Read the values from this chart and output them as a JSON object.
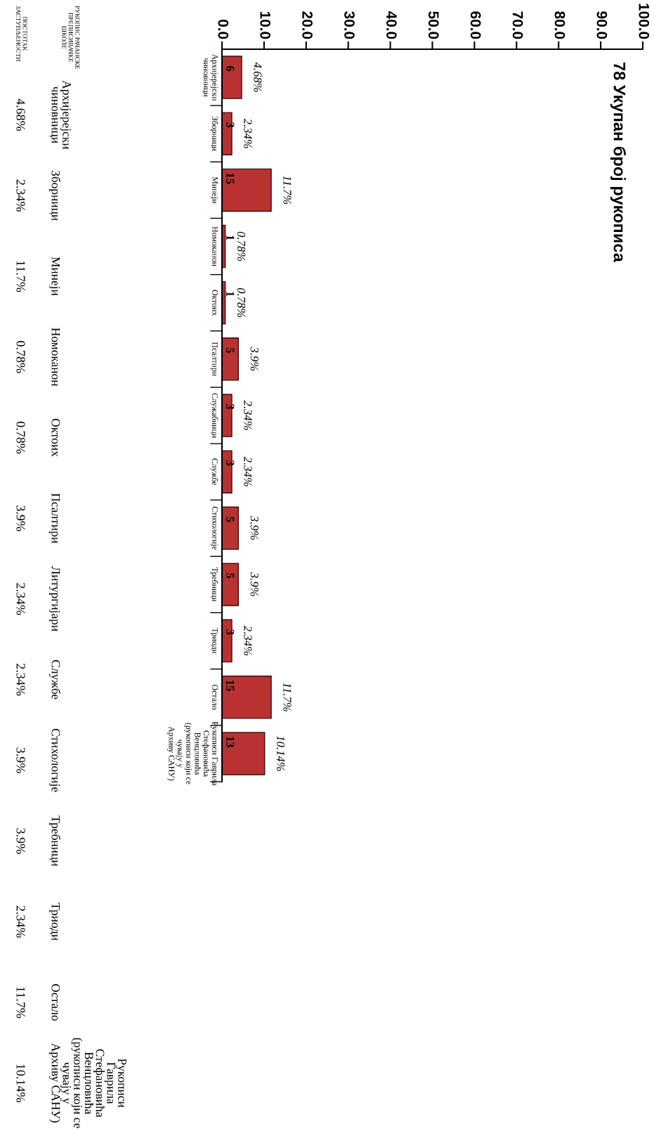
{
  "chart_data": [
    {
      "type": "bar",
      "orientation": "horizontal",
      "title": "78 Укупан број рукописа",
      "categories": [
        "Архијерејски\nчиновници",
        "Зборници",
        "Минеји",
        "Номоканон",
        "Октоих",
        "Псалтири",
        "Служабници",
        "Службе",
        "Стихологије",
        "Требници",
        "Триоди",
        "Остало",
        "Рукописи Гаврила\nСтефановића\nВенцловића\n(рукописи који се\nчувају у\nАрхиву САНУ)"
      ],
      "values": [
        4.68,
        2.34,
        11.7,
        0.78,
        0.78,
        3.9,
        2.34,
        2.34,
        3.9,
        3.9,
        2.34,
        11.7,
        10.14
      ],
      "value_labels": [
        "4.68%",
        "2.34%",
        "11.7%",
        "0.78%",
        "0.78%",
        "3.9%",
        "2.34%",
        "2.34%",
        "3.9%",
        "3.9%",
        "2.34%",
        "11.7%",
        "10.14%"
      ],
      "color": "#b83232",
      "xlim": [
        0,
        100
      ],
      "xticks": [
        {
          "value": 0,
          "label": "0.0"
        },
        {
          "value": 10,
          "label": "10.0"
        },
        {
          "value": 20,
          "label": "20.0"
        },
        {
          "value": 30,
          "label": "30.0"
        },
        {
          "value": 40,
          "label": "40.0"
        },
        {
          "value": 50,
          "label": "50.0"
        },
        {
          "value": 60,
          "label": "60.0"
        },
        {
          "value": 70,
          "label": "70.0"
        },
        {
          "value": 80,
          "label": "80.0"
        },
        {
          "value": 90,
          "label": "90.0"
        },
        {
          "value": 100,
          "label": "100.0"
        }
      ],
      "grid": false,
      "legend": false,
      "annotations": [
        "6",
        "3",
        "15",
        "1",
        "1",
        "5",
        "3",
        "3",
        "5",
        "5",
        "3",
        "15",
        "13"
      ]
    },
    {
      "type": "other",
      "categories": [
        "Архијерејски\nчиновници",
        "Зборници",
        "Минеји",
        "Номоканон",
        "Октоих",
        "Псалтири",
        "Литургијари",
        "Службе",
        "Стихологије",
        "Требници",
        "Триоди",
        "Остало",
        "Рукописи\nГаврила\nСтефановића\nВенцловића\n(рукописи који се\nчувају у\nАрхиву САНУ)"
      ],
      "value_labels": [
        "4.68%",
        "2.34%",
        "11.7%",
        "0.78%",
        "0.78%",
        "3.9%",
        "2.34%",
        "2.34%",
        "3.9%",
        "3.9%",
        "2.34%",
        "11.7%",
        "10.14%"
      ],
      "annotations": [
        "РУКОПИС РАЧАНСКЕ\nПРЕПИСИВАЧКЕ\nШКОЛЕ",
        "ПОСТОТАК\nЗАСТУПЉЕНОСТИ"
      ]
    }
  ]
}
